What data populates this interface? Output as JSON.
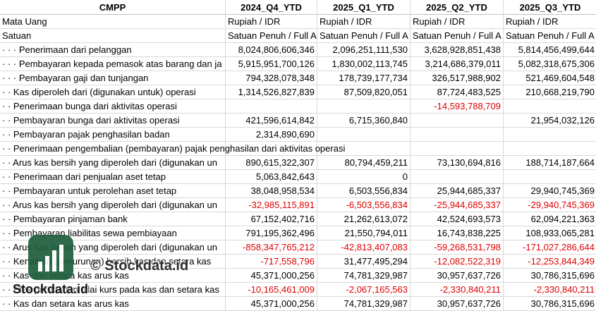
{
  "columns": [
    "CMPP",
    "2024_Q4_YTD",
    "2025_Q1_YTD",
    "2025_Q2_YTD",
    "2025_Q3_YTD"
  ],
  "rows": [
    [
      "Mata Uang",
      "Rupiah / IDR",
      "Rupiah / IDR",
      "Rupiah / IDR",
      "Rupiah / IDR"
    ],
    [
      "Satuan",
      "Satuan Penuh / Full A",
      "Satuan Penuh / Full A",
      "Satuan Penuh / Full A",
      "Satuan Penuh / Full A"
    ],
    [
      "· · · Penerimaan dari pelanggan",
      "8,024,806,606,346",
      "2,096,251,111,530",
      "3,628,928,851,438",
      "5,814,456,499,644"
    ],
    [
      "· · · Pembayaran kepada pemasok atas barang dan ja",
      "5,915,951,700,126",
      "1,830,002,113,745",
      "3,214,686,379,011",
      "5,082,318,675,306"
    ],
    [
      "· · · Pembayaran gaji dan tunjangan",
      "794,328,078,348",
      "178,739,177,734",
      "326,517,988,902",
      "521,469,604,548"
    ],
    [
      "· · Kas diperoleh dari (digunakan untuk) operasi",
      "1,314,526,827,839",
      "87,509,820,051",
      "87,724,483,525",
      "210,668,219,790"
    ],
    [
      "· · Penerimaan bunga dari aktivitas operasi",
      null,
      null,
      "-14,593,788,709",
      null
    ],
    [
      "· · Pembayaran bunga dari aktivitas operasi",
      "421,596,614,842",
      "6,715,360,840",
      null,
      "21,954,032,126"
    ],
    [
      "· · Pembayaran pajak penghasilan badan",
      "2,314,890,690",
      null,
      null,
      null
    ],
    [
      "· · Penerimaan pengembalian (pembayaran) pajak penghasilan dari aktivitas operasi",
      null,
      null,
      null,
      null
    ],
    [
      "· · Arus kas bersih yang diperoleh dari (digunakan un",
      "890,615,322,307",
      "80,794,459,211",
      "73,130,694,816",
      "188,714,187,664"
    ],
    [
      "· · Penerimaan dari penjualan aset tetap",
      "5,063,842,643",
      "0",
      null,
      null
    ],
    [
      "· · Pembayaran untuk perolehan aset tetap",
      "38,048,958,534",
      "6,503,556,834",
      "25,944,685,337",
      "29,940,745,369"
    ],
    [
      "· · Arus kas bersih yang diperoleh dari (digunakan un",
      "-32,985,115,891",
      "-6,503,556,834",
      "-25,944,685,337",
      "-29,940,745,369"
    ],
    [
      "· · Pembayaran pinjaman bank",
      "67,152,402,716",
      "21,262,613,072",
      "42,524,693,573",
      "62,094,221,363"
    ],
    [
      "· · Pembayaran liabilitas sewa pembiayaan",
      "791,195,362,496",
      "21,550,794,011",
      "16,743,838,225",
      "108,933,065,281"
    ],
    [
      "· · Arus kas bersih yang diperoleh dari (digunakan un",
      "-858,347,765,212",
      "-42,813,407,083",
      "-59,268,531,798",
      "-171,027,286,644"
    ],
    [
      "· · Kenaikan (penurunan) bersih kas dan setara kas",
      "-717,558,796",
      "31,477,495,294",
      "-12,082,522,319",
      "-12,253,844,349"
    ],
    [
      "· · Kas dan setara kas arus kas",
      "45,371,000,256",
      "74,781,329,987",
      "30,957,637,726",
      "30,786,315,696"
    ],
    [
      "· · Efek perubahan nilai kurs pada kas dan setara kas",
      "-10,165,461,009",
      "-2,067,165,563",
      "-2,330,840,211",
      "-2,330,840,211"
    ],
    [
      "· · Kas dan setara kas arus kas",
      "45,371,000,256",
      "74,781,329,987",
      "30,957,637,726",
      "30,786,315,696"
    ]
  ],
  "watermark": "© Stockdata.id",
  "logo_text": "Stockdata.id"
}
